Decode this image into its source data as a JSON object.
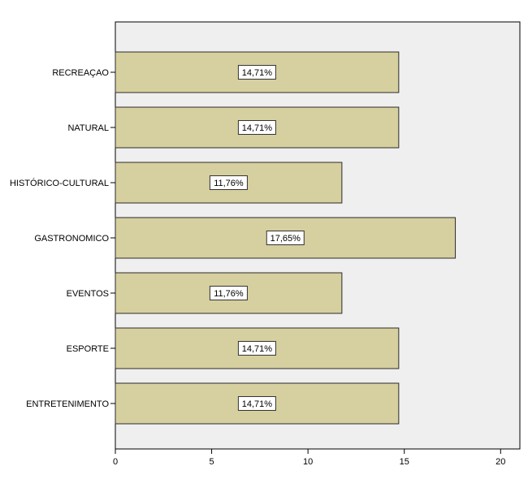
{
  "chart_data": {
    "type": "bar",
    "orientation": "horizontal",
    "categories": [
      "RECREAÇAO",
      "NATURAL",
      "HISTÓRICO-CULTURAL",
      "GASTRONOMICO",
      "EVENTOS",
      "ESPORTE",
      "ENTRETENIMENTO"
    ],
    "values": [
      14.71,
      14.71,
      11.76,
      17.65,
      11.76,
      14.71,
      14.71
    ],
    "data_labels": [
      "14,71%",
      "14,71%",
      "11,76%",
      "17,65%",
      "11,76%",
      "14,71%",
      "14,71%"
    ],
    "xlim": [
      0,
      21
    ],
    "xticks": [
      0,
      5,
      10,
      15,
      20
    ],
    "xtick_labels": [
      "0",
      "5",
      "10",
      "15",
      "20"
    ],
    "grid": false,
    "legend": "none",
    "colors": {
      "bar_fill": "#d6cf9f",
      "bar_stroke": "#2b2b2b",
      "plot_bg": "#efefef",
      "label_box_bg": "#ffffff"
    }
  }
}
